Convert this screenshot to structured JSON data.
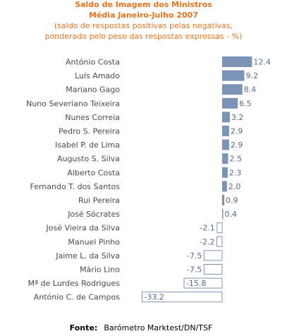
{
  "chart_data": {
    "type": "bar",
    "orientation": "horizontal",
    "title": "Saldo de Imagem dos Ministros",
    "subtitle_lines": [
      "Média Janeiro-Julho 2007",
      "(saldo de respostas positivas pelas negativas,",
      "ponderado pelo peso das respostas expressas - %)"
    ],
    "categories": [
      "António Costa",
      "Luís Amado",
      "Mariano Gago",
      "Nuno Severiano Teixeira",
      "Nunes Correia",
      "Pedro S. Pereira",
      "Isabel P. de Lima",
      "Augusto S. Silva",
      "Alberto Costa",
      "Fernando T. dos Santos",
      "Rui Pereira",
      "José Sócrates",
      "José Vieira da Silva",
      "Manuel Pinho",
      "Jaime L. da Silva",
      "Mário Lino",
      "Mª de Lurdes Rodrigues",
      "António C. de Campos"
    ],
    "values": [
      12.4,
      9.2,
      8.4,
      6.5,
      3.2,
      2.9,
      2.9,
      2.5,
      2.3,
      2.0,
      0.9,
      0.4,
      -2.1,
      -2.2,
      -7.5,
      -7.5,
      -15.8,
      -33.2
    ],
    "value_labels": [
      "12.4",
      "9.2",
      "8.4",
      "6.5",
      "3.2",
      "2.9",
      "2.9",
      "2.5",
      "2.3",
      "2.0",
      "0.9",
      "0.4",
      "-2.1",
      "-2.2",
      "-7.5",
      "-7.5",
      "-15.8",
      "-33.2"
    ],
    "xlim": [
      -33.2,
      12.4
    ],
    "grid": false,
    "legend": "none",
    "colors": {
      "title": "#e8731c",
      "positive_bar": "#7b93b6",
      "negative_fill": "#ffffff",
      "negative_stroke": "#7b93b6",
      "value_label": "#556a8c"
    }
  },
  "source": {
    "label": "Fonte:",
    "text": "Barómetro Marktest/DN/TSF"
  }
}
